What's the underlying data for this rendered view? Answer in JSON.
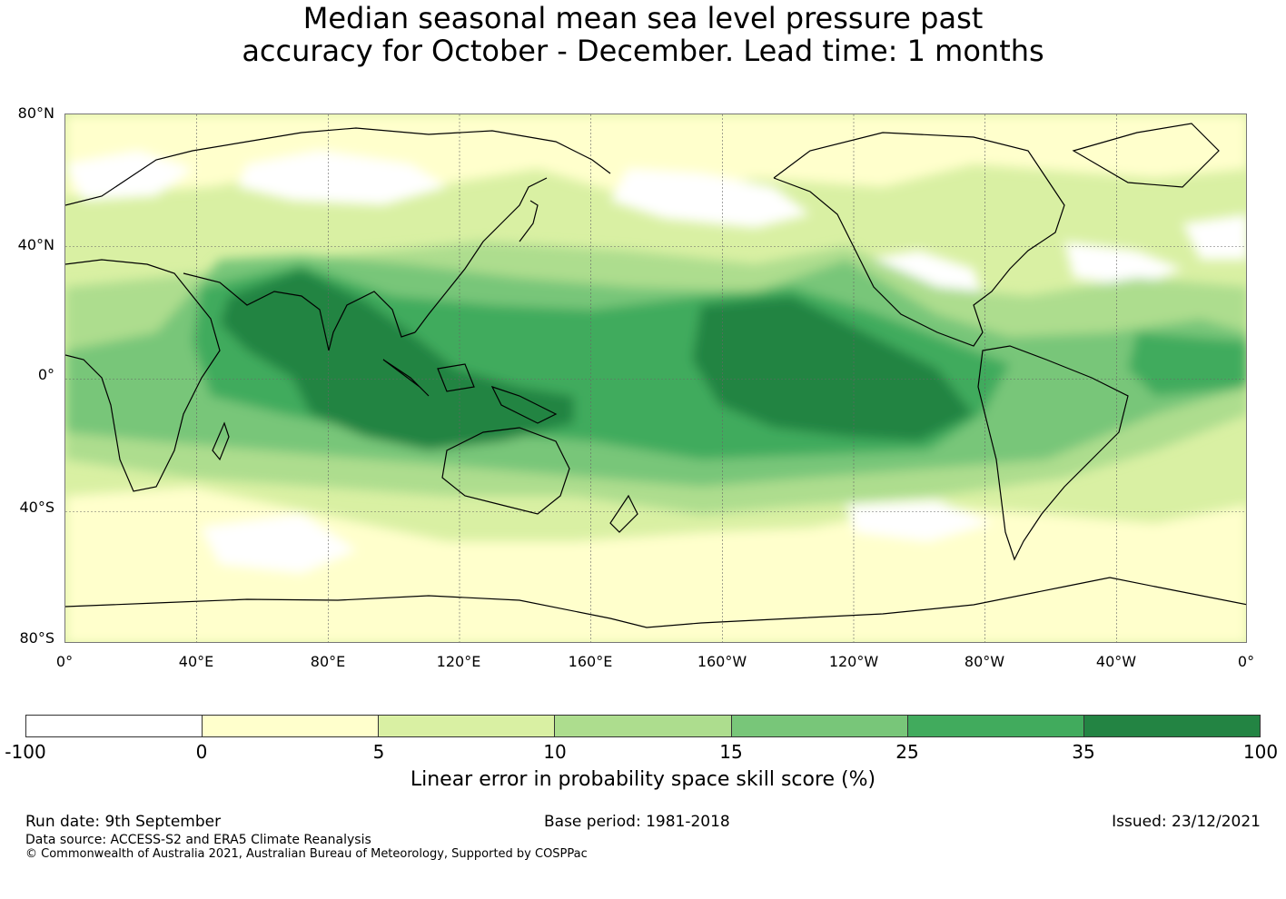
{
  "title": {
    "line1": "Median seasonal mean sea level pressure past",
    "line2": "accuracy for October - December. Lead time: 1 months"
  },
  "map": {
    "lat_labels": [
      "80°N",
      "40°N",
      "0°",
      "40°S",
      "80°S"
    ],
    "lon_labels": [
      "0°",
      "40°E",
      "80°E",
      "120°E",
      "160°E",
      "160°W",
      "120°W",
      "80°W",
      "40°W",
      "0°"
    ],
    "gridlines": true
  },
  "colorbar": {
    "ticks": [
      "-100",
      "0",
      "5",
      "10",
      "15",
      "25",
      "35",
      "100"
    ],
    "colors": [
      "#ffffff",
      "#ffffcc",
      "#d9f0a3",
      "#addd8e",
      "#78c679",
      "#41ab5d",
      "#238443"
    ],
    "label": "Linear error in probability space skill score (%)"
  },
  "footer": {
    "run_date": "Run date: 9th September",
    "base_period": "Base period: 1981-2018",
    "issued": "Issued: 23/12/2021",
    "data_source": "Data source: ACCESS-S2 and ERA5 Climate Reanalysis",
    "copyright": "© Commonwealth of Australia 2021, Australian Bureau of Meteorology, Supported by COSPPac"
  }
}
